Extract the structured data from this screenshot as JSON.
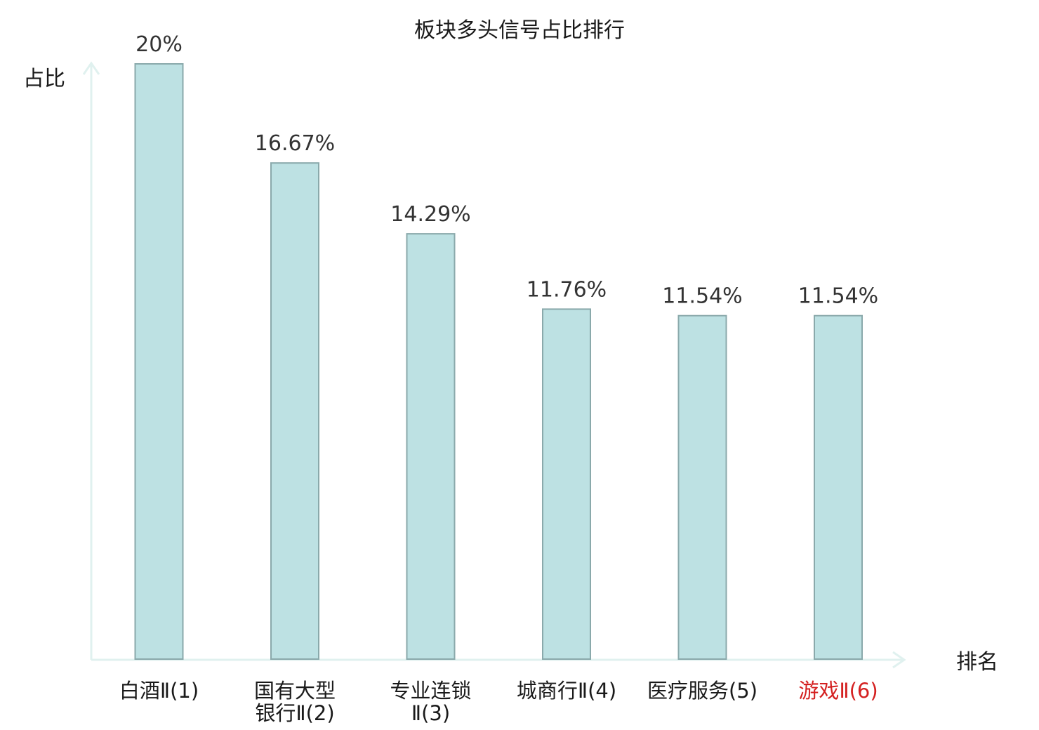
{
  "chart_data": {
    "type": "bar",
    "title": "板块多头信号占比排行",
    "ylabel": "占比",
    "xlabel": "排名",
    "ylim": [
      0,
      20
    ],
    "grid": false,
    "legend": "none",
    "categories": [
      {
        "lines": [
          "白酒Ⅱ(1)"
        ],
        "highlight": false
      },
      {
        "lines": [
          "国有大型",
          "银行Ⅱ(2)"
        ],
        "highlight": false
      },
      {
        "lines": [
          "专业连锁",
          "Ⅱ(3)"
        ],
        "highlight": false
      },
      {
        "lines": [
          "城商行Ⅱ(4)"
        ],
        "highlight": false
      },
      {
        "lines": [
          "医疗服务(5)"
        ],
        "highlight": false
      },
      {
        "lines": [
          "游戏Ⅱ(6)"
        ],
        "highlight": true
      }
    ],
    "values": [
      20,
      16.67,
      14.29,
      11.76,
      11.54,
      11.54
    ],
    "value_labels": [
      "20%",
      "16.67%",
      "14.29%",
      "11.76%",
      "11.54%",
      "11.54%"
    ],
    "colors": {
      "bar_fill": "#bde1e3",
      "bar_stroke": "#8aa9ab",
      "axis": "#e0f1ef",
      "highlight_text": "#d42020",
      "text": "#1a1a1a"
    }
  }
}
